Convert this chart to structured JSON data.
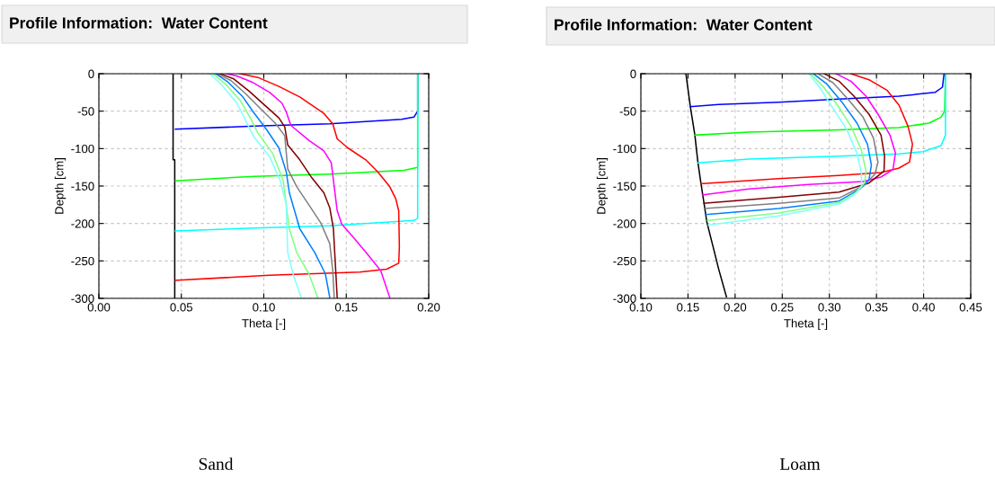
{
  "chart_data": [
    {
      "type": "line",
      "title": "Profile Information:  Water Content",
      "xlabel": "Theta [-]",
      "ylabel": "Depth [cm]",
      "annotations": [
        "Sand"
      ],
      "xlim": [
        0,
        0.2
      ],
      "ylim": [
        -300,
        0
      ],
      "xticks": [
        {
          "value": 0,
          "label": "0.00"
        },
        {
          "value": 0.05,
          "label": "0.05"
        },
        {
          "value": 0.1,
          "label": "0.10"
        },
        {
          "value": 0.15,
          "label": "0.15"
        },
        {
          "value": 0.2,
          "label": "0.20"
        }
      ],
      "yticks": [
        0,
        -50,
        -100,
        -150,
        -200,
        -250,
        -300
      ],
      "grid": true,
      "line_style": "solid",
      "marker": "none",
      "series": [
        {
          "color": "#000000",
          "x": [
            0.045,
            0.045,
            0.046,
            0.046
          ],
          "values": [
            0,
            -115,
            -115,
            -300
          ]
        },
        {
          "color": "#0000ff",
          "x": [
            0.1933,
            0.1933,
            0.191,
            0.1836,
            0.14,
            0.0945,
            0.0464
          ],
          "values": [
            0,
            -50,
            -58,
            -61,
            -67,
            -70,
            -74
          ]
        },
        {
          "color": "#00ff00",
          "x": [
            0.1933,
            0.1933,
            0.185,
            0.14,
            0.0945,
            0.0465
          ],
          "values": [
            0,
            -125,
            -129,
            -134,
            -137,
            -143
          ]
        },
        {
          "color": "#00ffff",
          "x": [
            0.1933,
            0.1933,
            0.191,
            0.14,
            0.0945,
            0.0464
          ],
          "values": [
            0,
            -193,
            -196,
            -203,
            -206,
            -210
          ]
        },
        {
          "color": "#ff0000",
          "x": [
            0.0855,
            0.0964,
            0.1091,
            0.1218,
            0.1364,
            0.1418,
            0.1445,
            0.1509,
            0.1618,
            0.1691,
            0.1764,
            0.18,
            0.1818,
            0.1822,
            0.1818,
            0.1745,
            0.1582,
            0.1036,
            0.0464
          ],
          "values": [
            0,
            -5,
            -17,
            -31,
            -53,
            -67,
            -87,
            -99,
            -115,
            -131,
            -151,
            -167,
            -183,
            -231,
            -253,
            -261,
            -265,
            -269,
            -276
          ]
        },
        {
          "color": "#ff00ff",
          "x": [
            0.0773,
            0.0836,
            0.0927,
            0.1036,
            0.1109,
            0.1136,
            0.1164,
            0.1273,
            0.1364,
            0.1409,
            0.1427,
            0.1445,
            0.1473,
            0.1545,
            0.1636,
            0.1709,
            0.1764
          ],
          "values": [
            0,
            -3,
            -11,
            -25,
            -39,
            -51,
            -69,
            -89,
            -103,
            -119,
            -151,
            -183,
            -201,
            -219,
            -243,
            -263,
            -299
          ]
        },
        {
          "color": "#800000",
          "x": [
            0.0736,
            0.0818,
            0.0909,
            0.1,
            0.1091,
            0.1127,
            0.1145,
            0.1218,
            0.1291,
            0.1364,
            0.14,
            0.1422,
            0.1433,
            0.1445
          ],
          "values": [
            0,
            -7,
            -23,
            -41,
            -59,
            -71,
            -95,
            -115,
            -139,
            -159,
            -179,
            -207,
            -251,
            -299
          ]
        },
        {
          "color": "#808080",
          "x": [
            0.0718,
            0.08,
            0.0891,
            0.0982,
            0.1073,
            0.1127,
            0.1145,
            0.12,
            0.1273,
            0.1345,
            0.14,
            0.1418,
            0.1427
          ],
          "values": [
            0,
            -9,
            -27,
            -47,
            -67,
            -83,
            -127,
            -151,
            -175,
            -199,
            -227,
            -263,
            -299
          ]
        },
        {
          "color": "#0080ff",
          "x": [
            0.0709,
            0.0782,
            0.0873,
            0.0936,
            0.1018,
            0.1091,
            0.1136,
            0.1155,
            0.1218,
            0.1309,
            0.1373,
            0.14
          ],
          "values": [
            0,
            -11,
            -31,
            -51,
            -75,
            -99,
            -131,
            -159,
            -207,
            -239,
            -267,
            -299
          ]
        },
        {
          "color": "#80ff80",
          "x": [
            0.0691,
            0.0764,
            0.0855,
            0.0918,
            0.0964,
            0.1055,
            0.1118,
            0.1136,
            0.1155,
            0.12,
            0.1273,
            0.1327
          ],
          "values": [
            0,
            -13,
            -35,
            -59,
            -79,
            -107,
            -143,
            -175,
            -207,
            -239,
            -267,
            -299
          ]
        },
        {
          "color": "#80ffff",
          "x": [
            0.0673,
            0.0745,
            0.0836,
            0.09,
            0.0936,
            0.1036,
            0.11,
            0.1136,
            0.1145,
            0.1182,
            0.1227
          ],
          "values": [
            0,
            -15,
            -39,
            -67,
            -83,
            -111,
            -143,
            -175,
            -239,
            -271,
            -299
          ]
        }
      ]
    },
    {
      "type": "line",
      "title": "Profile Information:  Water Content",
      "xlabel": "Theta [-]",
      "ylabel": "Depth [cm]",
      "annotations": [
        "Loam"
      ],
      "xlim": [
        0.1,
        0.45
      ],
      "ylim": [
        -300,
        0
      ],
      "xticks": [
        {
          "value": 0.1,
          "label": "0.10"
        },
        {
          "value": 0.15,
          "label": "0.15"
        },
        {
          "value": 0.2,
          "label": "0.20"
        },
        {
          "value": 0.25,
          "label": "0.25"
        },
        {
          "value": 0.3,
          "label": "0.30"
        },
        {
          "value": 0.35,
          "label": "0.35"
        },
        {
          "value": 0.4,
          "label": "0.40"
        },
        {
          "value": 0.45,
          "label": "0.45"
        }
      ],
      "yticks": [
        0,
        -50,
        -100,
        -150,
        -200,
        -250,
        -300
      ],
      "grid": true,
      "line_style": "solid",
      "marker": "none",
      "series": [
        {
          "color": "#000000",
          "x": [
            0.1478,
            0.1525,
            0.1573,
            0.1605,
            0.1637,
            0.1669,
            0.17,
            0.1764,
            0.1828,
            0.1908
          ],
          "values": [
            0,
            -44,
            -82,
            -118,
            -146,
            -172,
            -198,
            -230,
            -262,
            -298
          ]
        },
        {
          "color": "#0000ff",
          "x": [
            0.4217,
            0.42,
            0.4121,
            0.3739,
            0.3102,
            0.2465,
            0.1828,
            0.1525
          ],
          "values": [
            0,
            -18,
            -25,
            -30,
            -34,
            -38,
            -41,
            -44
          ]
        },
        {
          "color": "#00ff00",
          "x": [
            0.4232,
            0.4223,
            0.4185,
            0.4057,
            0.3739,
            0.3102,
            0.2146,
            0.1573
          ],
          "values": [
            0,
            -50,
            -58,
            -66,
            -72,
            -75,
            -78,
            -82
          ]
        },
        {
          "color": "#00ffff",
          "x": [
            0.4232,
            0.4232,
            0.4185,
            0.3994,
            0.3739,
            0.3102,
            0.2146,
            0.1605
          ],
          "values": [
            0,
            -82,
            -96,
            -104,
            -107,
            -110,
            -114,
            -119
          ]
        },
        {
          "color": "#ff0000",
          "x": [
            0.3229,
            0.342,
            0.3611,
            0.3739,
            0.3834,
            0.3882,
            0.385,
            0.3739,
            0.3548,
            0.3102,
            0.2465,
            0.1637
          ],
          "values": [
            0,
            -8,
            -22,
            -42,
            -70,
            -94,
            -118,
            -126,
            -132,
            -136,
            -140,
            -147
          ]
        },
        {
          "color": "#ff00ff",
          "x": [
            0.307,
            0.3229,
            0.3389,
            0.3516,
            0.3643,
            0.3701,
            0.3675,
            0.3548,
            0.3357,
            0.2783,
            0.2146,
            0.1653
          ],
          "values": [
            0,
            -10,
            -30,
            -54,
            -82,
            -106,
            -128,
            -138,
            -144,
            -148,
            -154,
            -162
          ]
        },
        {
          "color": "#800000",
          "x": [
            0.2943,
            0.3102,
            0.3261,
            0.342,
            0.3548,
            0.3586,
            0.358,
            0.342,
            0.3102,
            0.2465,
            0.1669
          ],
          "values": [
            0,
            -10,
            -30,
            -54,
            -82,
            -110,
            -130,
            -146,
            -158,
            -165,
            -173
          ]
        },
        {
          "color": "#808080",
          "x": [
            0.2879,
            0.3038,
            0.3197,
            0.3357,
            0.3468,
            0.3516,
            0.3484,
            0.3357,
            0.3102,
            0.2465,
            0.1685
          ],
          "values": [
            0,
            -12,
            -34,
            -58,
            -86,
            -118,
            -134,
            -150,
            -166,
            -173,
            -180
          ]
        },
        {
          "color": "#0080ff",
          "x": [
            0.2831,
            0.2975,
            0.3134,
            0.3293,
            0.3404,
            0.3446,
            0.342,
            0.3325,
            0.3102,
            0.2465,
            0.1694
          ],
          "values": [
            0,
            -14,
            -38,
            -66,
            -94,
            -122,
            -142,
            -154,
            -170,
            -180,
            -188
          ]
        },
        {
          "color": "#80ff80",
          "x": [
            0.2799,
            0.2927,
            0.3086,
            0.3229,
            0.334,
            0.3389,
            0.3373,
            0.3293,
            0.3102,
            0.2465,
            0.1707
          ],
          "values": [
            0,
            -16,
            -42,
            -70,
            -102,
            -130,
            -146,
            -158,
            -172,
            -186,
            -196
          ]
        },
        {
          "color": "#80ffff",
          "x": [
            0.2783,
            0.2895,
            0.3038,
            0.3182,
            0.3293,
            0.3341,
            0.3341,
            0.3261,
            0.3102,
            0.2465,
            0.1717
          ],
          "values": [
            0,
            -18,
            -46,
            -74,
            -106,
            -134,
            -150,
            -162,
            -174,
            -190,
            -202
          ]
        }
      ]
    }
  ]
}
